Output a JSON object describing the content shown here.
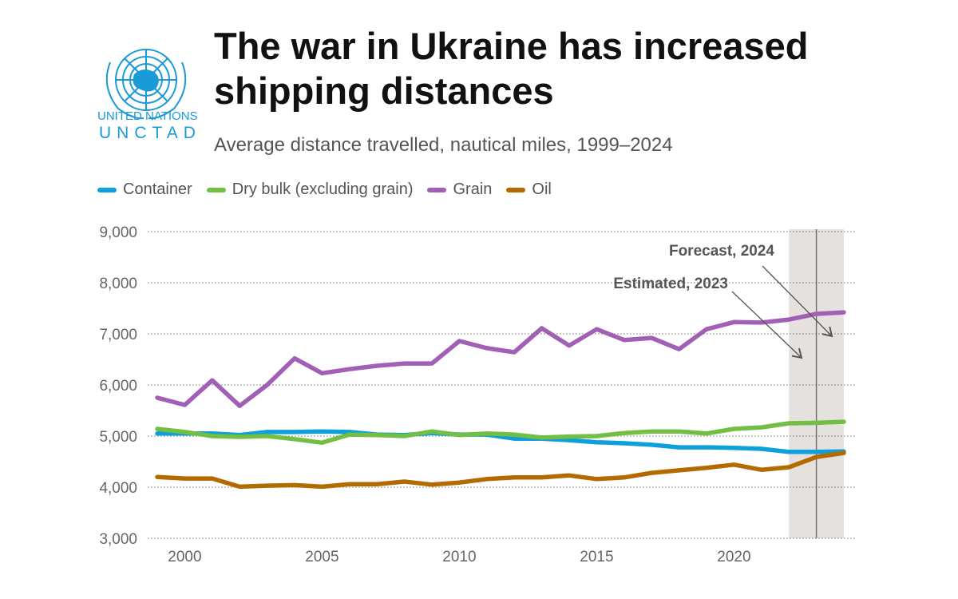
{
  "logo": {
    "line1": "UNITED NATIONS",
    "line2": "UNCTAD",
    "color": "#1a9ad6"
  },
  "chart_data": {
    "type": "line",
    "title": "The war in Ukraine has increased shipping distances",
    "subtitle": "Average distance travelled, nautical miles, 1999–2024",
    "x": [
      1999,
      2000,
      2001,
      2002,
      2003,
      2004,
      2005,
      2006,
      2007,
      2008,
      2009,
      2010,
      2011,
      2012,
      2013,
      2014,
      2015,
      2016,
      2017,
      2018,
      2019,
      2020,
      2021,
      2022,
      2023,
      2024
    ],
    "xticks": [
      "2000",
      "2005",
      "2010",
      "2015",
      "2020"
    ],
    "yticks": [
      "3,000",
      "4,000",
      "5,000",
      "6,000",
      "7,000",
      "8,000",
      "9,000"
    ],
    "ylim": [
      3000,
      9000
    ],
    "grid": "horizontal dotted",
    "legend": "top",
    "series": [
      {
        "name": "Container",
        "color": "#0ea0dc",
        "values": [
          5050,
          5050,
          5050,
          5020,
          5080,
          5080,
          5090,
          5080,
          5030,
          5020,
          5060,
          5030,
          5030,
          4950,
          4950,
          4920,
          4880,
          4860,
          4830,
          4780,
          4780,
          4770,
          4750,
          4690,
          4690,
          4700
        ]
      },
      {
        "name": "Dry bulk (excluding grain)",
        "color": "#72bf44",
        "values": [
          5140,
          5080,
          5000,
          4985,
          5000,
          4940,
          4870,
          5030,
          5020,
          5000,
          5090,
          5020,
          5050,
          5030,
          4970,
          4990,
          5000,
          5060,
          5090,
          5090,
          5050,
          5140,
          5170,
          5250,
          5260,
          5280
        ]
      },
      {
        "name": "Grain",
        "color": "#a15fb5",
        "values": [
          5750,
          5610,
          6090,
          5590,
          6000,
          6520,
          6230,
          6310,
          6375,
          6420,
          6420,
          6860,
          6720,
          6640,
          7110,
          6770,
          7090,
          6880,
          6920,
          6700,
          7090,
          7230,
          7220,
          7280,
          7390,
          7420
        ]
      },
      {
        "name": "Oil",
        "color": "#b36b00",
        "values": [
          4200,
          4170,
          4170,
          4010,
          4030,
          4040,
          4010,
          4060,
          4060,
          4110,
          4050,
          4090,
          4160,
          4190,
          4190,
          4230,
          4160,
          4190,
          4280,
          4330,
          4380,
          4440,
          4340,
          4390,
          4590,
          4670
        ]
      }
    ],
    "annotations": [
      {
        "text": "Forecast, 2024",
        "year": 2024
      },
      {
        "text": "Estimated, 2023",
        "year": 2023
      }
    ],
    "shaded_range": [
      2022,
      2024
    ],
    "vline": 2023
  }
}
